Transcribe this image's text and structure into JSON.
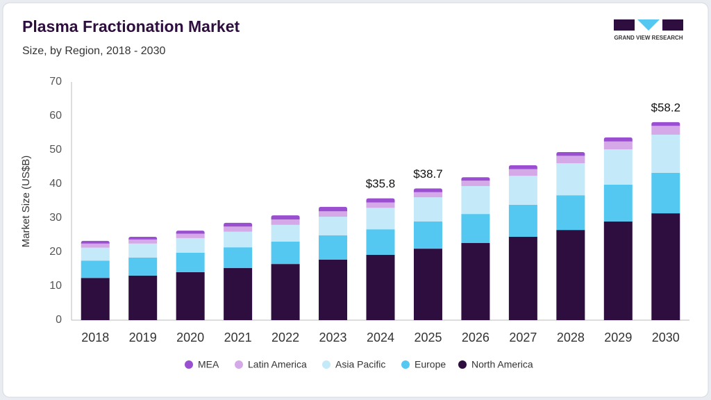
{
  "chart_data": {
    "type": "stacked_bar",
    "title": "Plasma Fractionation Market",
    "subtitle": "Size, by Region, 2018 - 2030",
    "y_label": "Market Size (US$B)",
    "logo_text": "GRAND VIEW RESEARCH",
    "categories": [
      "2018",
      "2019",
      "2020",
      "2021",
      "2022",
      "2023",
      "2024",
      "2025",
      "2026",
      "2027",
      "2028",
      "2029",
      "2030"
    ],
    "series": [
      {
        "name": "North America",
        "color": "#2d0e3e",
        "values": [
          12.4,
          13.1,
          14.1,
          15.3,
          16.5,
          17.8,
          19.2,
          21.0,
          22.7,
          24.5,
          26.5,
          29.0,
          31.4
        ]
      },
      {
        "name": "Europe",
        "color": "#55c8f2",
        "values": [
          5.1,
          5.3,
          5.7,
          6.1,
          6.6,
          7.1,
          7.5,
          8.0,
          8.5,
          9.4,
          10.2,
          10.8,
          11.9
        ]
      },
      {
        "name": "Asia Pacific",
        "color": "#c4e9f9",
        "values": [
          3.8,
          4.1,
          4.3,
          4.6,
          4.9,
          5.5,
          6.3,
          7.1,
          8.2,
          8.5,
          9.4,
          10.4,
          11.2
        ]
      },
      {
        "name": "Latin America",
        "color": "#d5a8e8",
        "values": [
          1.2,
          1.2,
          1.3,
          1.5,
          1.6,
          1.6,
          1.6,
          1.5,
          1.6,
          2.0,
          2.2,
          2.3,
          2.6
        ]
      },
      {
        "name": "MEA",
        "color": "#9a4fd0",
        "values": [
          0.8,
          0.8,
          0.9,
          1.1,
          1.2,
          1.3,
          1.2,
          1.1,
          1.0,
          1.1,
          1.1,
          1.2,
          1.1
        ]
      }
    ],
    "annotations": [
      {
        "category": "2024",
        "value": 35.8,
        "label": "$35.8"
      },
      {
        "category": "2025",
        "value": 38.7,
        "label": "$38.7"
      },
      {
        "category": "2030",
        "value": 58.2,
        "label": "$58.2"
      }
    ],
    "ylim": [
      0,
      70
    ],
    "yticks": [
      0,
      10,
      20,
      30,
      40,
      50,
      60,
      70
    ],
    "grid": false
  }
}
